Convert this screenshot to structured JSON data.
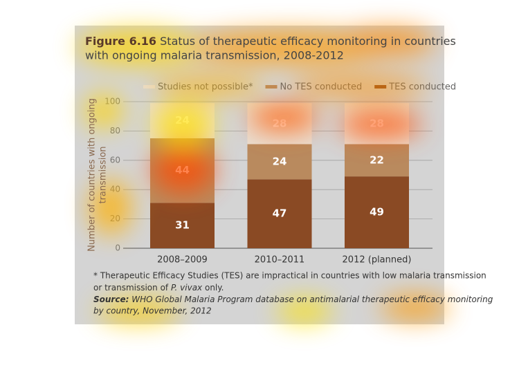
{
  "chart_data": {
    "type": "stacked_bar",
    "figure_label": "Figure 6.16",
    "title": [
      "Status of therapeutic efficacy monitoring in countries",
      "with ongoing malaria transmission, 2008-2012"
    ],
    "ylabel": [
      "Number of countries with ongoing",
      "transmission"
    ],
    "categories": [
      "2008–2009",
      "2010–2011",
      "2012 (planned)"
    ],
    "series": [
      {
        "name": "TES conducted",
        "color": "#8a4a24",
        "label_color": "#ffffff",
        "values": [
          31,
          47,
          49
        ]
      },
      {
        "name": "No TES conducted",
        "color": "#b98a5e",
        "label_color": "#ffffff",
        "values": [
          44,
          24,
          22
        ]
      },
      {
        "name": "Studies not possible*",
        "color": "#e9ddd0",
        "label_color": "#ffffff",
        "values": [
          24,
          28,
          28
        ]
      }
    ],
    "ylim": [
      0,
      100
    ],
    "yticks": [
      0,
      20,
      40,
      60,
      80,
      100
    ],
    "grid": true,
    "note": {
      "text1": "* Therapeutic Efficacy Studies (TES) are impractical in countries with low malaria transmission",
      "text2": "or transmission of ",
      "italic": "P. vivax",
      "text3": " only."
    },
    "source": {
      "label": "Source:",
      "text1": " WHO Global Malaria Program database on antimalarial therapeutic efficacy monitoring",
      "text2": "by country, November, 2012"
    }
  }
}
